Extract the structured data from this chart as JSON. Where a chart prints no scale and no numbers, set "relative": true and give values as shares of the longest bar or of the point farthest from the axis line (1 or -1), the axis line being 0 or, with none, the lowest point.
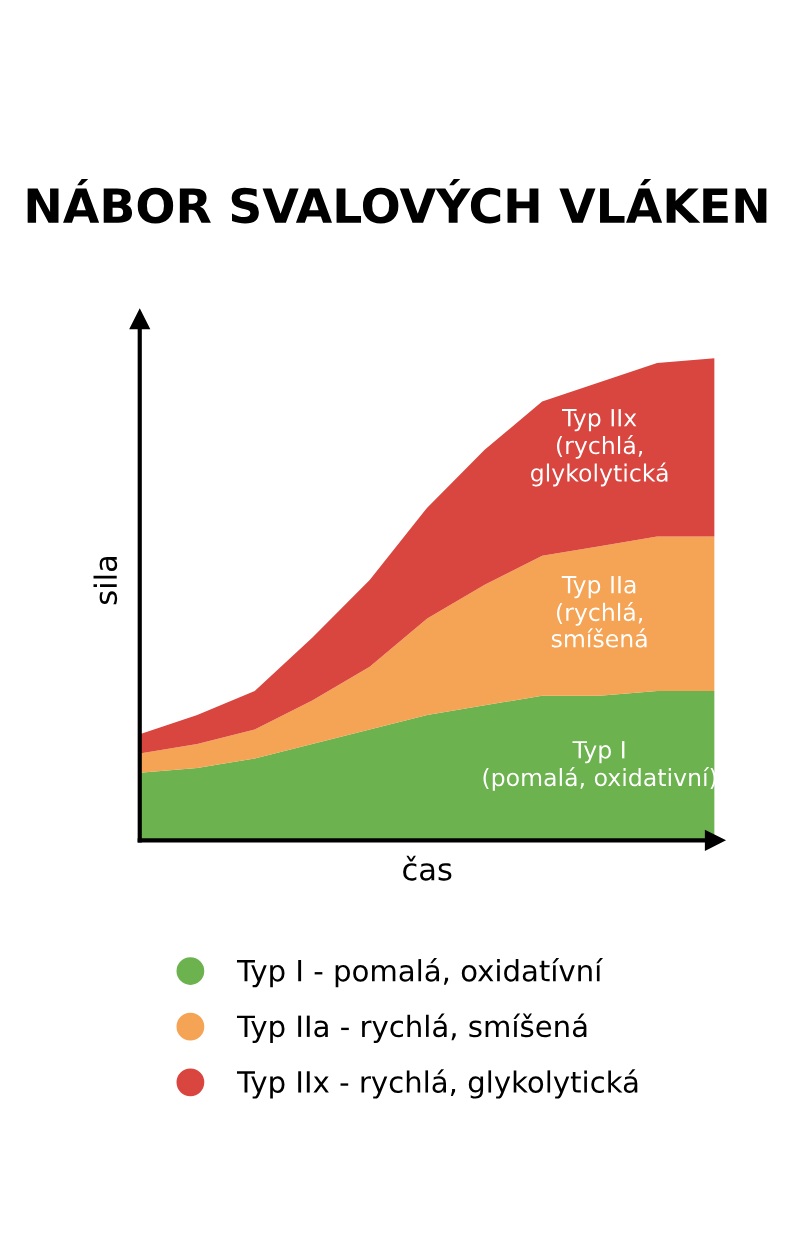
{
  "chart_data": {
    "type": "area",
    "title": "NÁBOR SVALOVÝCH VLÁKEN",
    "xlabel": "čas",
    "ylabel": "sila",
    "relative": true,
    "stacked": true,
    "tick_labels": false,
    "legend": "bottom",
    "categories": [
      null,
      null,
      null,
      null,
      null,
      null,
      null,
      null,
      null,
      null,
      null
    ],
    "series": [
      {
        "name": "Typ I - pomalá, oxidatívní",
        "color": "#6cb24e",
        "values": [
          0.14,
          0.15,
          0.17,
          0.2,
          0.23,
          0.26,
          0.28,
          0.3,
          0.3,
          0.31,
          0.31
        ]
      },
      {
        "name": "Typ IIa - rychlá, smíšená",
        "color": "#f5a354",
        "values": [
          0.04,
          0.05,
          0.06,
          0.09,
          0.13,
          0.2,
          0.25,
          0.29,
          0.31,
          0.32,
          0.32
        ]
      },
      {
        "name": "Typ IIx - rychlá, glykolytická",
        "color": "#d9453f",
        "values": [
          0.04,
          0.06,
          0.08,
          0.13,
          0.18,
          0.23,
          0.28,
          0.32,
          0.34,
          0.36,
          0.37
        ]
      }
    ],
    "annotations": [
      "Typ I\n(pomalá, oxidativní)",
      "Typ IIa\n(rychlá,\nsmíšená",
      "Typ IIx\n(rychlá,\nglykolytická"
    ]
  }
}
